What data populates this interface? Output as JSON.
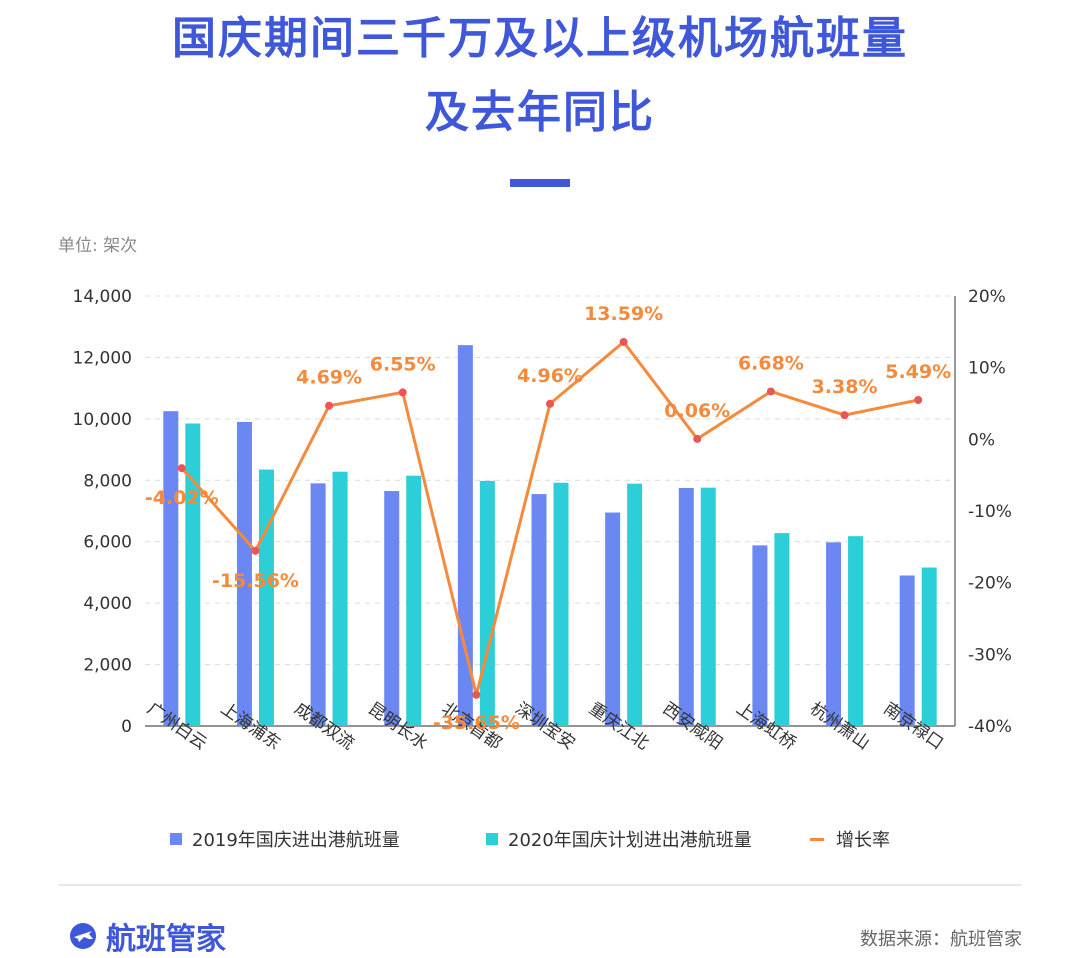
{
  "header": {
    "title_line1": "国庆期间三千万及以上级机场航班量",
    "title_line2": "及去年同比"
  },
  "unit_label": "单位: 架次",
  "colors": {
    "title": "#3f57d9",
    "bar2019": "#6b87f1",
    "bar2020": "#2ccfd8",
    "growth": "#f58a3c",
    "growth_point": "#ea5555"
  },
  "chart_data": {
    "type": "bar",
    "categories": [
      "广州白云",
      "上海浦东",
      "成都双流",
      "昆明长水",
      "北京首都",
      "深圳宝安",
      "重庆江北",
      "西安咸阳",
      "上海虹桥",
      "杭州萧山",
      "南京禄口"
    ],
    "series": [
      {
        "name": "2019年国庆进出港航班量",
        "type": "bar",
        "axis": "left",
        "values": [
          10250,
          9900,
          7900,
          7650,
          12400,
          7550,
          6950,
          7750,
          5880,
          5980,
          4900
        ]
      },
      {
        "name": "2020年国庆计划进出港航班量",
        "type": "bar",
        "axis": "left",
        "values": [
          9850,
          8350,
          8280,
          8150,
          7980,
          7920,
          7890,
          7760,
          6280,
          6180,
          5160
        ]
      },
      {
        "name": "增长率",
        "type": "line",
        "axis": "right",
        "values": [
          -4.02,
          -15.56,
          4.69,
          6.55,
          -35.65,
          4.96,
          13.59,
          0.06,
          6.68,
          3.38,
          5.49
        ],
        "labels": [
          "-4.02%",
          "-15.56%",
          "4.69%",
          "6.55%",
          "-35.65%",
          "4.96%",
          "13.59%",
          "0.06%",
          "6.68%",
          "3.38%",
          "5.49%"
        ]
      }
    ],
    "y_left": {
      "min": 0,
      "max": 14000,
      "ticks": [
        "0",
        "2,000",
        "4,000",
        "6,000",
        "8,000",
        "10,000",
        "12,000",
        "14,000"
      ]
    },
    "y_right": {
      "min": -40,
      "max": 20,
      "ticks": [
        "-40%",
        "-30%",
        "-20%",
        "-10%",
        "0%",
        "10%",
        "20%"
      ]
    },
    "grid": "horizontal-dashed",
    "legend_position": "bottom"
  },
  "legend": {
    "item1": "2019年国庆进出港航班量",
    "item2": "2020年国庆计划进出港航班量",
    "item3": "增长率"
  },
  "footer": {
    "brand": "航班管家",
    "source": "数据来源：航班管家"
  }
}
